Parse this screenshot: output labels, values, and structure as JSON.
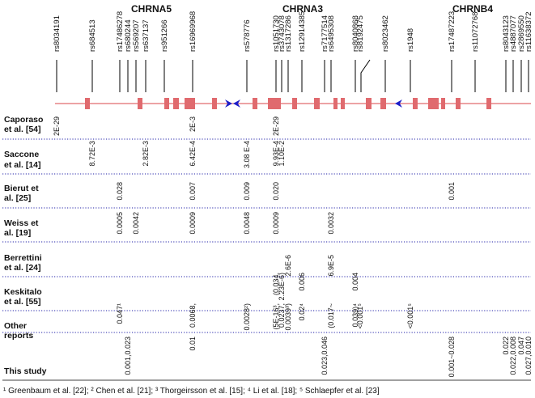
{
  "genes": [
    "CHRNA5",
    "CHRNA3",
    "CHRNB4"
  ],
  "snps": [
    "rs8034191",
    "rs684513",
    "rs17486278",
    "rs680244",
    "rs569207",
    "rs637137",
    "rs951266",
    "rs16969968",
    "rs578776",
    "rs1051730",
    "rs3743078",
    "rs1317286",
    "rs12914385",
    "rs7177514",
    "rs6495308",
    "rs8040868",
    "rs8192475",
    "rs8023462",
    "rs1948",
    "rs17487223",
    "rs11072768",
    "rs8043123",
    "rs4887077",
    "rs2869550",
    "rs11638372"
  ],
  "studies": [
    {
      "label": [
        "Caporaso",
        "et al. [54]"
      ],
      "values": [
        {
          "snp": 0,
          "text": "2E-29"
        },
        {
          "snp": 7,
          "text": "2E-3"
        },
        {
          "snp": 9,
          "text": "2E-29"
        }
      ]
    },
    {
      "label": [
        "Saccone",
        "et al. [14]"
      ],
      "values": [
        {
          "snp": 1,
          "text": "8.72E-3"
        },
        {
          "snp": 5,
          "text": "2.82E-3"
        },
        {
          "snp": 7,
          "text": "6.42E-4"
        },
        {
          "snp": 8,
          "text": "3.08 E-4"
        },
        {
          "snp": 9,
          "text": "9.93E-4"
        },
        {
          "snp": 10,
          "text": "1.10E-2"
        }
      ]
    },
    {
      "label": [
        "Bierut et",
        "al. [25]"
      ],
      "values": [
        {
          "snp": 2,
          "text": "0.028"
        },
        {
          "snp": 7,
          "text": "0.007"
        },
        {
          "snp": 8,
          "text": "0.009"
        },
        {
          "snp": 9,
          "text": "0.020"
        },
        {
          "snp": 19,
          "text": "0.001"
        }
      ]
    },
    {
      "label": [
        "Weiss et",
        "al. [19]"
      ],
      "values": [
        {
          "snp": 2,
          "text": "0.0005"
        },
        {
          "snp": 4,
          "text": "0.0042"
        },
        {
          "snp": 7,
          "text": "0.0009"
        },
        {
          "snp": 8,
          "text": "0.0048"
        },
        {
          "snp": 9,
          "text": "0.0009"
        },
        {
          "snp": 14,
          "text": "0.0032"
        }
      ]
    },
    {
      "label": [
        "Berrettini",
        "et al. [24]"
      ],
      "values": [
        {
          "snp": 11,
          "text": "2.6E-6"
        },
        {
          "snp": 14,
          "text": "6.9E-5"
        }
      ]
    },
    {
      "label": [
        "Keskitalo",
        "et al. [55]"
      ],
      "values": [
        {
          "snp": 9,
          "text": "(0.034,"
        },
        {
          "snp": 10,
          "text": "2.23E-6)"
        },
        {
          "snp": 12,
          "text": "0.006"
        },
        {
          "snp": 15,
          "text": "0.004"
        }
      ]
    },
    {
      "label": [
        "Other",
        "reports"
      ],
      "values": [
        {
          "snp": 2,
          "text": "0.047¹"
        },
        {
          "snp": 7,
          "text": "0.0068,"
        },
        {
          "snp": 8,
          "text": "0.0028²)"
        },
        {
          "snp": 9,
          "text": "(5E-16³,"
        },
        {
          "snp": 10,
          "text": "0.0237,"
        },
        {
          "snp": 11,
          "text": "0.0039³)"
        },
        {
          "snp": 12,
          "text": "0.02⁴"
        },
        {
          "snp": 14,
          "text": "(0.017~"
        },
        {
          "snp": 15,
          "text": "0.039)⁴"
        },
        {
          "snp": 16,
          "text": "<0.001⁵"
        },
        {
          "snp": 18,
          "text": "<0.001⁵"
        }
      ]
    },
    {
      "label": [
        "This study"
      ],
      "values": [
        {
          "snp": 3,
          "text": "0.001,0.023"
        },
        {
          "snp": 7,
          "text": "0.01"
        },
        {
          "snp": 13,
          "text": "0.023,0.046"
        },
        {
          "snp": 19,
          "text": "0.001~0.028"
        },
        {
          "snp": 21,
          "text": "0.022"
        },
        {
          "snp": 22,
          "text": "0.022,0.008"
        },
        {
          "snp": 23,
          "text": "0.047"
        },
        {
          "snp": 24,
          "text": "0.027,0.010"
        }
      ]
    }
  ],
  "footnote": "¹ Greenbaum et al. [22]; ² Chen et al. [21]; ³ Thorgeirsson et al. [15]; ⁴ Li et al. [18]; ⁵ Schlaepfer et al. [23]",
  "colors": {
    "exon": "#e06a6e",
    "line": "#e06a6e",
    "arrow": "#1e1ec8",
    "dotted": "#2020a8",
    "text": "#111111"
  }
}
